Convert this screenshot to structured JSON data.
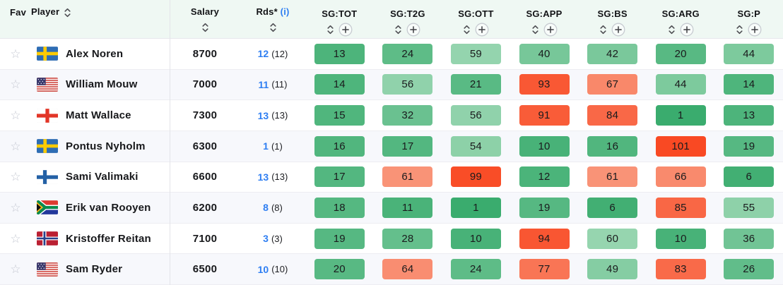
{
  "table": {
    "header": {
      "fav": "Fav",
      "player": "Player",
      "salary": "Salary",
      "rds": "Rds*",
      "rds_info": "(i)",
      "sg_columns": [
        "SG:TOT",
        "SG:T2G",
        "SG:OTT",
        "SG:APP",
        "SG:BS",
        "SG:ARG",
        "SG:P"
      ]
    },
    "rows": [
      {
        "player": "Alex Noren",
        "country": "sweden",
        "salary": "8700",
        "rds": "12",
        "rds_total": "(12)",
        "sg": [
          {
            "v": "13",
            "c": "#4db47b"
          },
          {
            "v": "24",
            "c": "#5ebc87"
          },
          {
            "v": "59",
            "c": "#94d4ae"
          },
          {
            "v": "40",
            "c": "#77c799"
          },
          {
            "v": "42",
            "c": "#7ac89b"
          },
          {
            "v": "20",
            "c": "#58b983"
          },
          {
            "v": "44",
            "c": "#7dca9d"
          }
        ]
      },
      {
        "player": "William Mouw",
        "country": "usa",
        "salary": "7000",
        "rds": "11",
        "rds_total": "(11)",
        "sg": [
          {
            "v": "14",
            "c": "#4eb57c"
          },
          {
            "v": "56",
            "c": "#90d2ab"
          },
          {
            "v": "21",
            "c": "#59ba84"
          },
          {
            "v": "93",
            "c": "#f95834"
          },
          {
            "v": "67",
            "c": "#f9886a"
          },
          {
            "v": "44",
            "c": "#7dca9d"
          },
          {
            "v": "14",
            "c": "#4eb57c"
          }
        ]
      },
      {
        "player": "Matt Wallace",
        "country": "england",
        "salary": "7300",
        "rds": "13",
        "rds_total": "(13)",
        "sg": [
          {
            "v": "15",
            "c": "#50b67d"
          },
          {
            "v": "32",
            "c": "#6ac190"
          },
          {
            "v": "56",
            "c": "#90d2ab"
          },
          {
            "v": "91",
            "c": "#f95c38"
          },
          {
            "v": "84",
            "c": "#f96847"
          },
          {
            "v": "1",
            "c": "#3aac6e"
          },
          {
            "v": "13",
            "c": "#4db47b"
          }
        ]
      },
      {
        "player": "Pontus Nyholm",
        "country": "sweden",
        "salary": "6300",
        "rds": "1",
        "rds_total": "(1)",
        "sg": [
          {
            "v": "16",
            "c": "#51b67e"
          },
          {
            "v": "17",
            "c": "#53b780"
          },
          {
            "v": "54",
            "c": "#8dd1a8"
          },
          {
            "v": "10",
            "c": "#48b278"
          },
          {
            "v": "16",
            "c": "#51b67e"
          },
          {
            "v": "101",
            "c": "#f94923"
          },
          {
            "v": "19",
            "c": "#56b882"
          }
        ]
      },
      {
        "player": "Sami Valimaki",
        "country": "finland",
        "salary": "6600",
        "rds": "13",
        "rds_total": "(13)",
        "sg": [
          {
            "v": "17",
            "c": "#53b780"
          },
          {
            "v": "61",
            "c": "#f99377"
          },
          {
            "v": "99",
            "c": "#f94d27"
          },
          {
            "v": "12",
            "c": "#4bb47a"
          },
          {
            "v": "61",
            "c": "#f99377"
          },
          {
            "v": "66",
            "c": "#f98a6d"
          },
          {
            "v": "6",
            "c": "#42af73"
          }
        ]
      },
      {
        "player": "Erik van Rooyen",
        "country": "south-africa",
        "salary": "6200",
        "rds": "8",
        "rds_total": "(8)",
        "sg": [
          {
            "v": "18",
            "c": "#55b881"
          },
          {
            "v": "11",
            "c": "#4ab379"
          },
          {
            "v": "1",
            "c": "#3aac6e"
          },
          {
            "v": "19",
            "c": "#56b882"
          },
          {
            "v": "6",
            "c": "#42af73"
          },
          {
            "v": "85",
            "c": "#f96745"
          },
          {
            "v": "55",
            "c": "#8ed1a9"
          }
        ]
      },
      {
        "player": "Kristoffer Reitan",
        "country": "norway",
        "salary": "7100",
        "rds": "3",
        "rds_total": "(3)",
        "sg": [
          {
            "v": "19",
            "c": "#56b882"
          },
          {
            "v": "28",
            "c": "#64bf8c"
          },
          {
            "v": "10",
            "c": "#48b278"
          },
          {
            "v": "94",
            "c": "#f95632"
          },
          {
            "v": "60",
            "c": "#96d5af"
          },
          {
            "v": "10",
            "c": "#48b278"
          },
          {
            "v": "36",
            "c": "#71c495"
          }
        ]
      },
      {
        "player": "Sam Ryder",
        "country": "usa",
        "salary": "6500",
        "rds": "10",
        "rds_total": "(10)",
        "sg": [
          {
            "v": "20",
            "c": "#58b983"
          },
          {
            "v": "64",
            "c": "#f98d71"
          },
          {
            "v": "24",
            "c": "#5ebc87"
          },
          {
            "v": "77",
            "c": "#f97555"
          },
          {
            "v": "49",
            "c": "#85cda3"
          },
          {
            "v": "83",
            "c": "#f96a49"
          },
          {
            "v": "26",
            "c": "#61bd8a"
          }
        ]
      }
    ]
  },
  "colors": {
    "header_bg": "#eff8f3",
    "row_alt_bg": "#f7f8fc",
    "accent_blue": "#2e7ef2",
    "divider": "#e3e4e9",
    "star_gray": "#c5c8d2"
  },
  "icons": {
    "sort": "sort-arrows-icon",
    "add_column": "plus-circle-icon",
    "favorite": "star-outline-icon"
  }
}
